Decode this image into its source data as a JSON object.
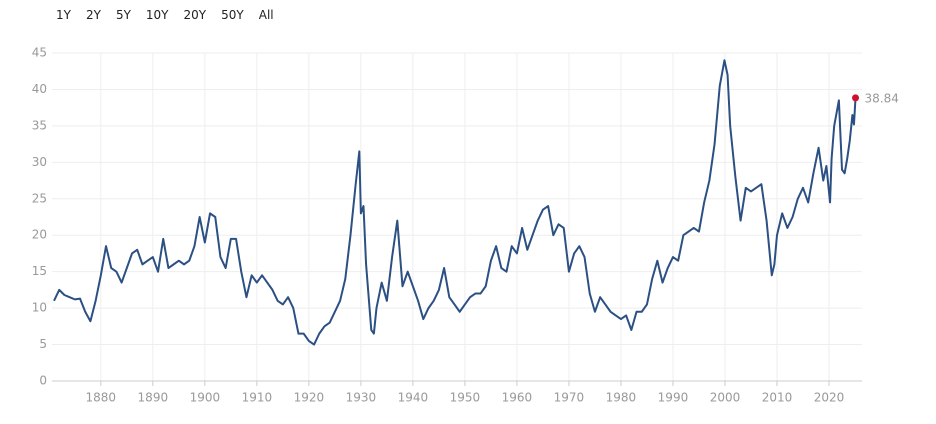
{
  "range_buttons": [
    "1Y",
    "2Y",
    "5Y",
    "10Y",
    "20Y",
    "50Y",
    "All"
  ],
  "chart_data": {
    "type": "line",
    "xlim": [
      1871,
      2025.5
    ],
    "ylim": [
      0,
      45
    ],
    "xticks": [
      1880,
      1890,
      1900,
      1910,
      1920,
      1930,
      1940,
      1950,
      1960,
      1970,
      1980,
      1990,
      2000,
      2010,
      2020
    ],
    "yticks": [
      0,
      5,
      10,
      15,
      20,
      25,
      30,
      35,
      40,
      45
    ],
    "grid": true,
    "highlight_color": "#d0112b",
    "x": [
      1871,
      1872,
      1873,
      1874,
      1875,
      1876,
      1877,
      1878,
      1879,
      1880,
      1881,
      1882,
      1883,
      1884,
      1885,
      1886,
      1887,
      1888,
      1889,
      1890,
      1891,
      1892,
      1893,
      1894,
      1895,
      1896,
      1897,
      1898,
      1899,
      1900,
      1901,
      1902,
      1903,
      1904,
      1905,
      1906,
      1907,
      1908,
      1909,
      1910,
      1911,
      1912,
      1913,
      1914,
      1915,
      1916,
      1917,
      1918,
      1919,
      1920,
      1921,
      1922,
      1923,
      1924,
      1925,
      1926,
      1927,
      1928,
      1929,
      1929.7,
      1930,
      1930.5,
      1931,
      1932,
      1932.5,
      1933,
      1934,
      1935,
      1936,
      1937,
      1938,
      1939,
      1940,
      1941,
      1942,
      1943,
      1944,
      1945,
      1946,
      1947,
      1948,
      1949,
      1950,
      1951,
      1952,
      1953,
      1954,
      1955,
      1956,
      1957,
      1958,
      1959,
      1960,
      1961,
      1962,
      1963,
      1964,
      1965,
      1966,
      1967,
      1968,
      1969,
      1970,
      1971,
      1972,
      1973,
      1974,
      1975,
      1976,
      1977,
      1978,
      1979,
      1980,
      1981,
      1982,
      1983,
      1984,
      1985,
      1986,
      1987,
      1988,
      1989,
      1990,
      1991,
      1992,
      1993,
      1994,
      1995,
      1996,
      1997,
      1998,
      1999,
      1999.9,
      2000.5,
      2001,
      2002,
      2003,
      2004,
      2005,
      2006,
      2007,
      2008,
      2009,
      2009.5,
      2010,
      2011,
      2012,
      2013,
      2014,
      2015,
      2016,
      2017,
      2018,
      2018.9,
      2019.5,
      2020.2,
      2020.5,
      2021,
      2021.9,
      2022.5,
      2023,
      2023.5,
      2024,
      2024.5,
      2024.8,
      2025.1
    ],
    "series": [
      {
        "color": "#2c5083",
        "values": [
          11,
          12.5,
          11.8,
          11.5,
          11.2,
          11.3,
          9.5,
          8.2,
          11,
          14.5,
          18.5,
          15.5,
          15,
          13.5,
          15.5,
          17.5,
          18,
          16,
          16.5,
          17,
          15,
          19.5,
          15.5,
          16,
          16.5,
          16,
          16.5,
          18.5,
          22.5,
          19,
          23,
          22.5,
          17,
          15.5,
          19.5,
          19.5,
          15,
          11.5,
          14.5,
          13.5,
          14.5,
          13.5,
          12.5,
          11,
          10.5,
          11.5,
          10,
          6.5,
          6.5,
          5.5,
          5,
          6.5,
          7.5,
          8,
          9.5,
          11,
          14,
          20,
          27,
          31.5,
          23,
          24,
          16,
          7,
          6.5,
          10,
          13.5,
          11,
          17,
          22,
          13,
          15,
          13,
          11,
          8.5,
          10,
          11,
          12.5,
          15.5,
          11.5,
          10.5,
          9.5,
          10.5,
          11.5,
          12,
          12,
          13,
          16.5,
          18.5,
          15.5,
          15,
          18.5,
          17.5,
          21,
          18,
          20,
          22,
          23.5,
          24,
          20,
          21.5,
          21,
          15,
          17.5,
          18.5,
          17,
          12,
          9.5,
          11.5,
          10.5,
          9.5,
          9,
          8.5,
          9,
          7,
          9.5,
          9.5,
          10.5,
          14,
          16.5,
          13.5,
          15.5,
          17,
          16.5,
          20,
          20.5,
          21,
          20.5,
          24.5,
          27.5,
          32.5,
          40.5,
          44,
          42,
          35,
          28,
          22,
          26.5,
          26,
          26.5,
          27,
          22,
          14.5,
          16,
          20,
          23,
          21,
          22.5,
          25,
          26.5,
          24.5,
          28.5,
          32,
          27.5,
          29.5,
          24.5,
          30.5,
          35,
          38.5,
          29,
          28.5,
          30.5,
          33,
          36.5,
          35.2,
          38.84
        ]
      }
    ]
  }
}
